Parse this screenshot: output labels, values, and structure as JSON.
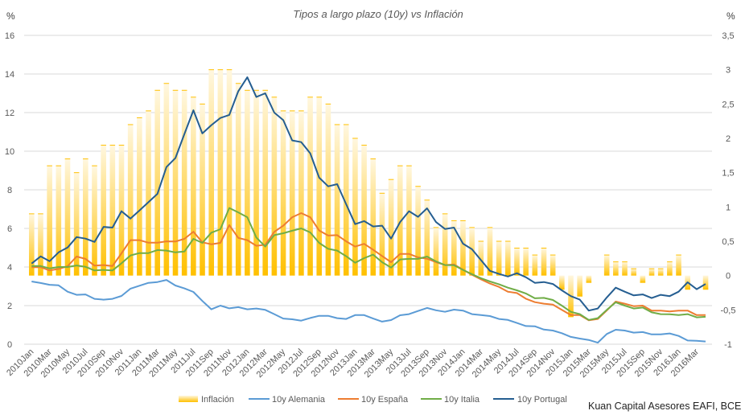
{
  "chart_data": {
    "type": "bar+line",
    "title": "Tipos a largo plazo (10y) vs Inflación",
    "left_axis": {
      "label": "%",
      "range": [
        0,
        16
      ],
      "ticks": [
        0,
        2,
        4,
        6,
        8,
        10,
        12,
        14,
        16
      ],
      "tick_labels": [
        "0",
        "2",
        "4",
        "6",
        "8",
        "10",
        "12",
        "14",
        "16"
      ]
    },
    "right_axis": {
      "label": "%",
      "range": [
        -1,
        3.5
      ],
      "ticks": [
        -1,
        -0.5,
        0,
        0.5,
        1,
        1.5,
        2,
        2.5,
        3,
        3.5
      ],
      "tick_labels": [
        "-1",
        "-0,5",
        "0",
        "0,5",
        "1",
        "1,5",
        "2",
        "2,5",
        "3",
        "3,5"
      ]
    },
    "grid": true,
    "legend_position": "bottom",
    "x_tick_labels": [
      "2010Jan",
      "2010Mar",
      "2010May",
      "2010Jul",
      "2010Sep",
      "2010Nov",
      "2011Jan",
      "2011Mar",
      "2011May",
      "2011Jul",
      "2011Sep",
      "2011Nov",
      "2012Jan",
      "2012Mar",
      "2012May",
      "2012Jul",
      "2012Sep",
      "2012Nov",
      "2013Jan",
      "2013Mar",
      "2013May",
      "2013Jul",
      "2013Sep",
      "2013Nov",
      "2014Jan",
      "2014Mar",
      "2014May",
      "2014Jul",
      "2014Sep",
      "2014Nov",
      "2015Jan",
      "2015Mar",
      "2015May",
      "2015Jul",
      "2015Sep",
      "2015Nov",
      "2016Jan",
      "2016Mar"
    ],
    "x_start": "2010Jan",
    "x_count": 76,
    "series": [
      {
        "name": "Inflación",
        "type": "bar",
        "axis": "right",
        "color": "#FFC000",
        "values": [
          0.9,
          0.9,
          1.6,
          1.6,
          1.7,
          1.5,
          1.7,
          1.6,
          1.9,
          1.9,
          1.9,
          2.2,
          2.3,
          2.4,
          2.7,
          2.8,
          2.7,
          2.7,
          2.6,
          2.5,
          3.0,
          3.0,
          3.0,
          2.8,
          2.7,
          2.7,
          2.7,
          2.6,
          2.4,
          2.4,
          2.4,
          2.6,
          2.6,
          2.5,
          2.2,
          2.2,
          2.0,
          1.9,
          1.7,
          1.2,
          1.4,
          1.6,
          1.6,
          1.3,
          1.1,
          0.7,
          0.9,
          0.8,
          0.8,
          0.7,
          0.5,
          0.7,
          0.5,
          0.5,
          0.4,
          0.4,
          0.3,
          0.4,
          0.3,
          -0.2,
          -0.6,
          -0.3,
          -0.1,
          0.0,
          0.3,
          0.2,
          0.2,
          0.1,
          -0.1,
          0.1,
          0.1,
          0.2,
          0.3,
          -0.2,
          0.0,
          -0.2
        ]
      },
      {
        "name": "10y Alemania",
        "type": "line",
        "axis": "left",
        "color": "#5B9BD5",
        "values": [
          3.25,
          3.17,
          3.08,
          3.05,
          2.72,
          2.56,
          2.58,
          2.35,
          2.31,
          2.35,
          2.5,
          2.88,
          3.03,
          3.18,
          3.22,
          3.33,
          3.04,
          2.89,
          2.71,
          2.24,
          1.81,
          2.0,
          1.86,
          1.92,
          1.81,
          1.85,
          1.78,
          1.56,
          1.33,
          1.29,
          1.22,
          1.36,
          1.47,
          1.47,
          1.35,
          1.31,
          1.51,
          1.51,
          1.33,
          1.17,
          1.25,
          1.5,
          1.56,
          1.72,
          1.88,
          1.76,
          1.68,
          1.79,
          1.74,
          1.56,
          1.51,
          1.46,
          1.31,
          1.26,
          1.1,
          0.94,
          0.93,
          0.76,
          0.71,
          0.57,
          0.38,
          0.29,
          0.22,
          0.08,
          0.53,
          0.75,
          0.71,
          0.6,
          0.63,
          0.51,
          0.51,
          0.56,
          0.43,
          0.19,
          0.18,
          0.14
        ]
      },
      {
        "name": "10y España",
        "type": "line",
        "axis": "left",
        "color": "#ED7D31",
        "values": [
          3.99,
          3.99,
          3.82,
          3.9,
          4.04,
          4.54,
          4.42,
          4.07,
          4.1,
          4.05,
          4.71,
          5.39,
          5.39,
          5.26,
          5.26,
          5.33,
          5.32,
          5.46,
          5.83,
          5.28,
          5.18,
          5.25,
          6.17,
          5.51,
          5.39,
          5.1,
          5.15,
          5.82,
          6.14,
          6.58,
          6.79,
          6.58,
          5.89,
          5.63,
          5.65,
          5.33,
          5.06,
          5.2,
          4.89,
          4.57,
          4.25,
          4.68,
          4.68,
          4.5,
          4.43,
          4.25,
          4.1,
          4.13,
          3.86,
          3.6,
          3.36,
          3.14,
          2.97,
          2.72,
          2.65,
          2.36,
          2.18,
          2.1,
          2.05,
          1.78,
          1.51,
          1.51,
          1.24,
          1.31,
          1.75,
          2.21,
          2.1,
          1.97,
          2.0,
          1.74,
          1.74,
          1.7,
          1.74,
          1.74,
          1.51,
          1.51
        ]
      },
      {
        "name": "10y Italia",
        "type": "line",
        "axis": "left",
        "color": "#70AD47",
        "values": [
          4.05,
          4.05,
          3.93,
          4.0,
          4.0,
          4.08,
          4.01,
          3.82,
          3.85,
          3.82,
          4.19,
          4.6,
          4.72,
          4.72,
          4.88,
          4.85,
          4.76,
          4.8,
          5.46,
          5.25,
          5.78,
          5.96,
          7.06,
          6.83,
          6.58,
          5.53,
          5.06,
          5.65,
          5.75,
          5.88,
          6.0,
          5.79,
          5.25,
          4.94,
          4.85,
          4.56,
          4.22,
          4.46,
          4.64,
          4.25,
          3.97,
          4.39,
          4.42,
          4.42,
          4.54,
          4.29,
          4.1,
          4.09,
          3.85,
          3.63,
          3.42,
          3.25,
          3.11,
          2.93,
          2.79,
          2.63,
          2.38,
          2.4,
          2.29,
          2.0,
          1.68,
          1.56,
          1.26,
          1.35,
          1.78,
          2.17,
          2.0,
          1.85,
          1.9,
          1.65,
          1.56,
          1.55,
          1.51,
          1.56,
          1.39,
          1.42
        ]
      },
      {
        "name": "10y Portugal",
        "type": "line",
        "axis": "left",
        "color": "#255E91",
        "values": [
          4.18,
          4.55,
          4.3,
          4.76,
          5.01,
          5.55,
          5.47,
          5.3,
          6.08,
          6.04,
          6.89,
          6.51,
          6.93,
          7.36,
          7.79,
          9.18,
          9.64,
          10.89,
          12.12,
          10.92,
          11.35,
          11.72,
          11.88,
          13.11,
          13.83,
          12.81,
          13.0,
          12.0,
          11.61,
          10.56,
          10.47,
          9.89,
          8.63,
          8.18,
          8.29,
          7.25,
          6.22,
          6.38,
          6.1,
          6.14,
          5.47,
          6.33,
          6.89,
          6.6,
          7.04,
          6.33,
          5.97,
          6.04,
          5.21,
          4.92,
          4.36,
          3.8,
          3.64,
          3.51,
          3.68,
          3.47,
          3.18,
          3.22,
          3.12,
          2.79,
          2.49,
          2.31,
          1.74,
          1.85,
          2.42,
          2.93,
          2.72,
          2.53,
          2.58,
          2.39,
          2.56,
          2.49,
          2.72,
          3.21,
          2.85,
          3.12
        ]
      }
    ],
    "source": "Kuan Capital Asesores EAFI, BCE"
  }
}
